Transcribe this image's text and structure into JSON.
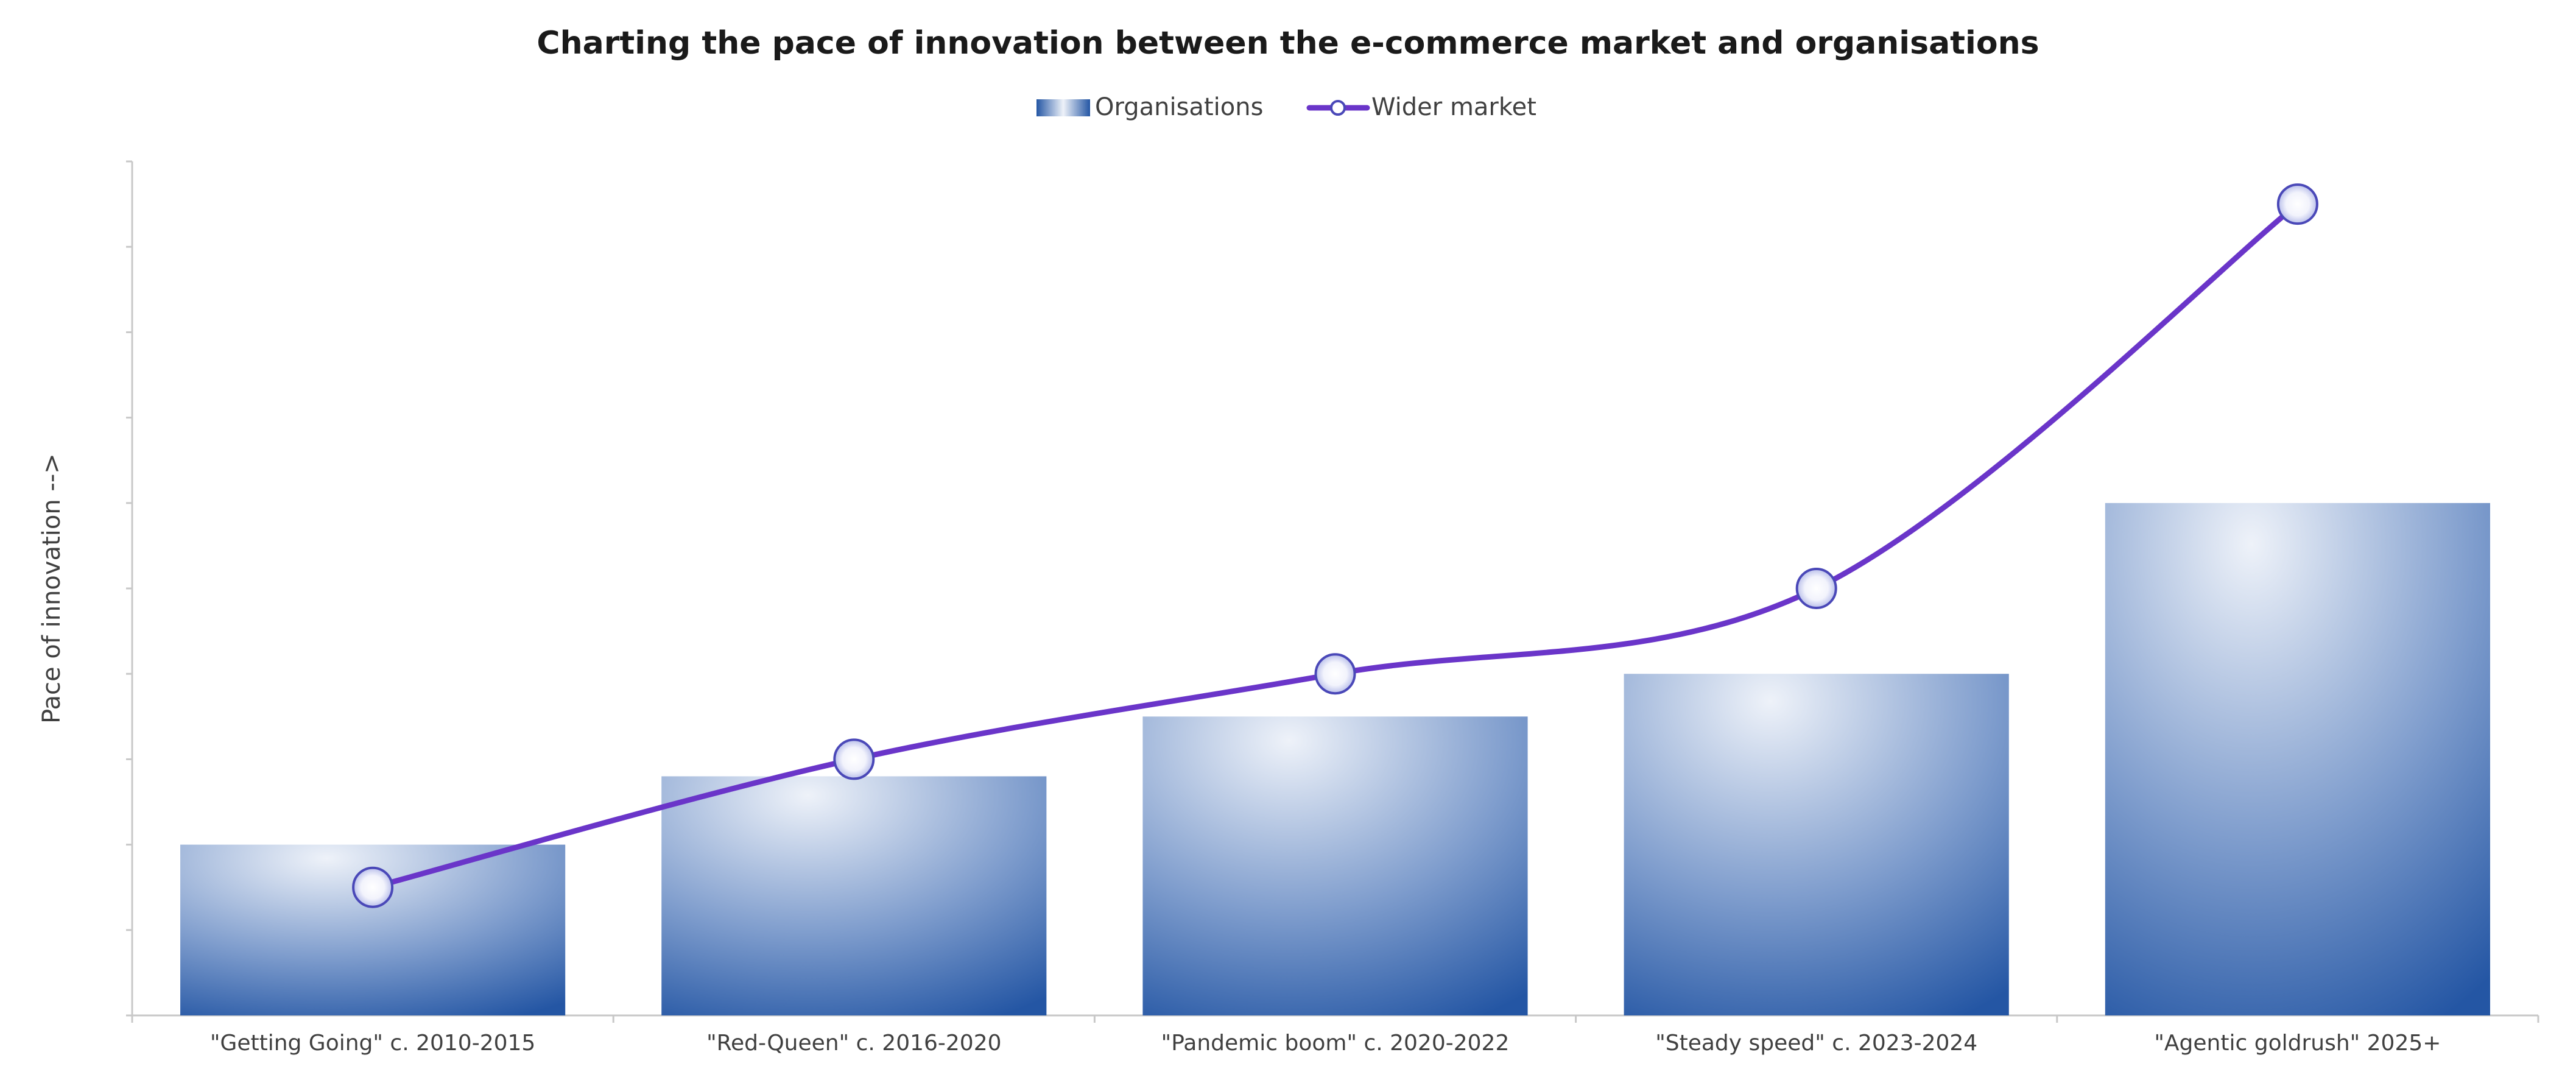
{
  "chart_data": {
    "type": "bar",
    "title": "Charting the pace of innovation between the e-commerce market and organisations",
    "ylabel": "Pace of innovation -->",
    "xlabel": "",
    "categories": [
      "\"Getting Going\" c. 2010-2015",
      "\"Red-Queen\" c. 2016-2020",
      "\"Pandemic boom\" c. 2020-2022",
      "\"Steady speed\" c. 2023-2024",
      "\"Agentic goldrush\" 2025+"
    ],
    "series": [
      {
        "name": "Organisations",
        "type": "bar",
        "values": [
          2,
          2.8,
          3.5,
          4,
          6
        ]
      },
      {
        "name": "Wider market",
        "type": "line",
        "values": [
          1.5,
          3,
          4,
          5,
          9.5
        ]
      }
    ],
    "ylim": [
      0,
      10
    ],
    "y_ticks": [
      0,
      1,
      2,
      3,
      4,
      5,
      6,
      7,
      8,
      9,
      10
    ],
    "y_tick_labels_shown": false,
    "grid": false,
    "legend_position": "top-center",
    "colors": {
      "bar_dark": "#2456a4",
      "bar_light": "#eef2f9",
      "line": "#6a35c9",
      "marker_stroke": "#4a48b8",
      "axis": "#c8c8c8",
      "title": "#1a1a1a",
      "label": "#404040"
    }
  }
}
